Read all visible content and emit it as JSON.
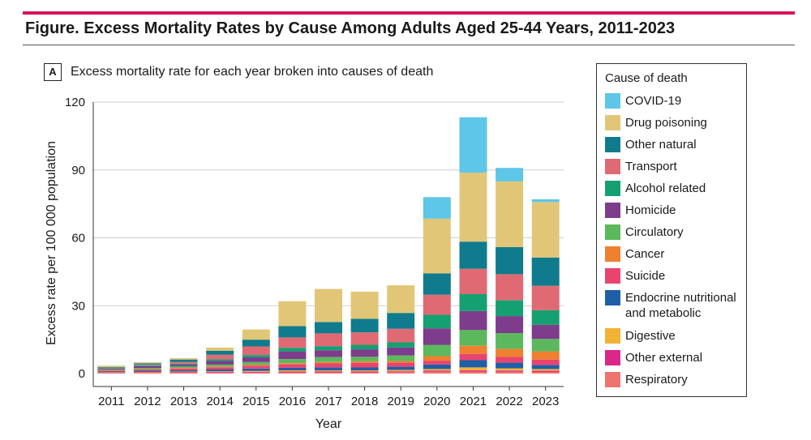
{
  "figure": {
    "title": "Figure. Excess Mortality Rates by Cause Among Adults Aged 25-44 Years, 2011-2023",
    "accent_color": "#d6135c"
  },
  "panel": {
    "label": "A",
    "title": "Excess mortality rate for each year broken into causes of death"
  },
  "legend": {
    "title": "Cause of death",
    "items": [
      {
        "label": "COVID-19",
        "color": "#5ec6e6"
      },
      {
        "label": "Drug poisoning",
        "color": "#e2c678"
      },
      {
        "label": "Other natural",
        "color": "#0f7b8c"
      },
      {
        "label": "Transport",
        "color": "#e06a74"
      },
      {
        "label": "Alcohol related",
        "color": "#14a070"
      },
      {
        "label": "Homicide",
        "color": "#7d3c8c"
      },
      {
        "label": "Circulatory",
        "color": "#5cb85c"
      },
      {
        "label": "Cancer",
        "color": "#ee8030"
      },
      {
        "label": "Suicide",
        "color": "#e8446e"
      },
      {
        "label": "Endocrine nutritional and metabolic",
        "color": "#1f5fa8"
      },
      {
        "label": "Digestive",
        "color": "#f2b233"
      },
      {
        "label": "Other external",
        "color": "#d9278a"
      },
      {
        "label": "Respiratory",
        "color": "#ee7470"
      }
    ]
  },
  "chart_data": {
    "type": "bar",
    "stacked": true,
    "title": "Excess mortality rate for each year broken into causes of death",
    "xlabel": "Year",
    "ylabel": "Excess rate per 100 000 population",
    "ylim": [
      -1,
      120
    ],
    "yticks": [
      0,
      30,
      60,
      90,
      120
    ],
    "grid": true,
    "legend_position": "right",
    "categories": [
      "2011",
      "2012",
      "2013",
      "2014",
      "2015",
      "2016",
      "2017",
      "2018",
      "2019",
      "2020",
      "2021",
      "2022",
      "2023"
    ],
    "stack_order": [
      "Respiratory",
      "Other external",
      "Digestive",
      "Endocrine nutritional and metabolic",
      "Suicide",
      "Cancer",
      "Circulatory",
      "Homicide",
      "Alcohol related",
      "Transport",
      "Other natural",
      "Drug poisoning",
      "COVID-19"
    ],
    "series": [
      {
        "name": "Respiratory",
        "values": [
          0.3,
          0.3,
          0.4,
          0.4,
          0.5,
          0.5,
          0.5,
          0.5,
          0.6,
          0.8,
          0.9,
          0.8,
          0.7
        ]
      },
      {
        "name": "Other external",
        "values": [
          0.2,
          0.2,
          0.3,
          0.3,
          0.3,
          0.4,
          0.4,
          0.4,
          0.4,
          0.5,
          0.5,
          0.5,
          0.5
        ]
      },
      {
        "name": "Digestive",
        "values": [
          0.1,
          0.2,
          0.2,
          0.3,
          0.4,
          0.5,
          0.5,
          0.5,
          0.6,
          0.7,
          1.3,
          1.0,
          0.8
        ]
      },
      {
        "name": "Endocrine nutritional and metabolic",
        "values": [
          0.3,
          0.5,
          0.6,
          0.8,
          1.0,
          1.2,
          1.3,
          1.3,
          1.4,
          2.0,
          3.2,
          2.5,
          1.8
        ]
      },
      {
        "name": "Suicide",
        "values": [
          0.4,
          0.6,
          0.7,
          1.0,
          1.3,
          1.5,
          1.8,
          2.0,
          1.8,
          1.7,
          2.8,
          2.6,
          2.4
        ]
      },
      {
        "name": "Cancer",
        "values": [
          0.2,
          0.2,
          0.3,
          0.3,
          0.4,
          0.5,
          0.6,
          0.7,
          0.8,
          2.0,
          3.6,
          3.5,
          3.6
        ]
      },
      {
        "name": "Circulatory",
        "values": [
          0.3,
          0.5,
          0.6,
          0.9,
          1.2,
          1.8,
          2.2,
          2.0,
          2.4,
          5.0,
          7.0,
          7.0,
          5.5
        ]
      },
      {
        "name": "Homicide",
        "values": [
          0.4,
          0.8,
          0.8,
          1.6,
          2.1,
          3.4,
          3.0,
          3.3,
          3.5,
          7.3,
          8.3,
          7.5,
          6.2
        ]
      },
      {
        "name": "Alcohol related",
        "values": [
          0.2,
          0.4,
          0.5,
          0.7,
          1.0,
          1.6,
          1.8,
          2.0,
          2.3,
          6.0,
          7.5,
          7.0,
          6.5
        ]
      },
      {
        "name": "Transport",
        "values": [
          0.2,
          0.3,
          0.8,
          2.0,
          3.8,
          4.6,
          5.7,
          5.5,
          6.0,
          8.8,
          11.2,
          11.5,
          10.8
        ]
      },
      {
        "name": "Other natural",
        "values": [
          0.3,
          0.5,
          1.0,
          1.8,
          3.0,
          5.0,
          5.0,
          6.0,
          7.0,
          9.5,
          12.0,
          12.0,
          12.5
        ]
      },
      {
        "name": "Drug poisoning",
        "values": [
          0.6,
          0.5,
          0.6,
          1.4,
          4.5,
          11.0,
          14.6,
          12.0,
          12.2,
          24.2,
          30.5,
          29.0,
          24.5
        ]
      },
      {
        "name": "COVID-19",
        "values": [
          0,
          0,
          0,
          0,
          0,
          0,
          0,
          0,
          0,
          9.5,
          24.5,
          6.0,
          1.2
        ]
      }
    ]
  }
}
